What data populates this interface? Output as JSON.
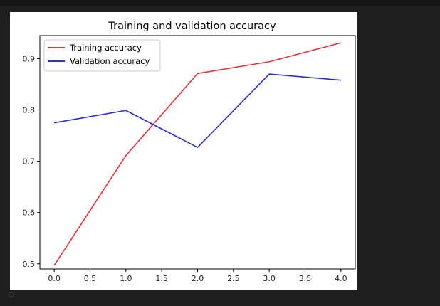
{
  "chart_data": {
    "type": "line",
    "title": "Training and validation accuracy",
    "xlabel": "",
    "ylabel": "",
    "x": [
      0,
      1,
      2,
      3,
      4
    ],
    "xlim": [
      -0.2,
      4.2
    ],
    "ylim": [
      0.49,
      0.945
    ],
    "xticks": [
      0.0,
      0.5,
      1.0,
      1.5,
      2.0,
      2.5,
      3.0,
      3.5,
      4.0
    ],
    "xtick_labels": [
      "0.0",
      "0.5",
      "1.0",
      "1.5",
      "2.0",
      "2.5",
      "3.0",
      "3.5",
      "4.0"
    ],
    "yticks": [
      0.5,
      0.6,
      0.7,
      0.8,
      0.9
    ],
    "ytick_labels": [
      "0.5",
      "0.6",
      "0.7",
      "0.8",
      "0.9"
    ],
    "grid": false,
    "legend_position": "top-left",
    "series": [
      {
        "name": "Training accuracy",
        "color": "#e8333a",
        "values": [
          0.497,
          0.711,
          0.871,
          0.894,
          0.931
        ]
      },
      {
        "name": "Validation accuracy",
        "color": "#2b2be0",
        "values": [
          0.775,
          0.799,
          0.727,
          0.87,
          0.858
        ]
      }
    ]
  }
}
